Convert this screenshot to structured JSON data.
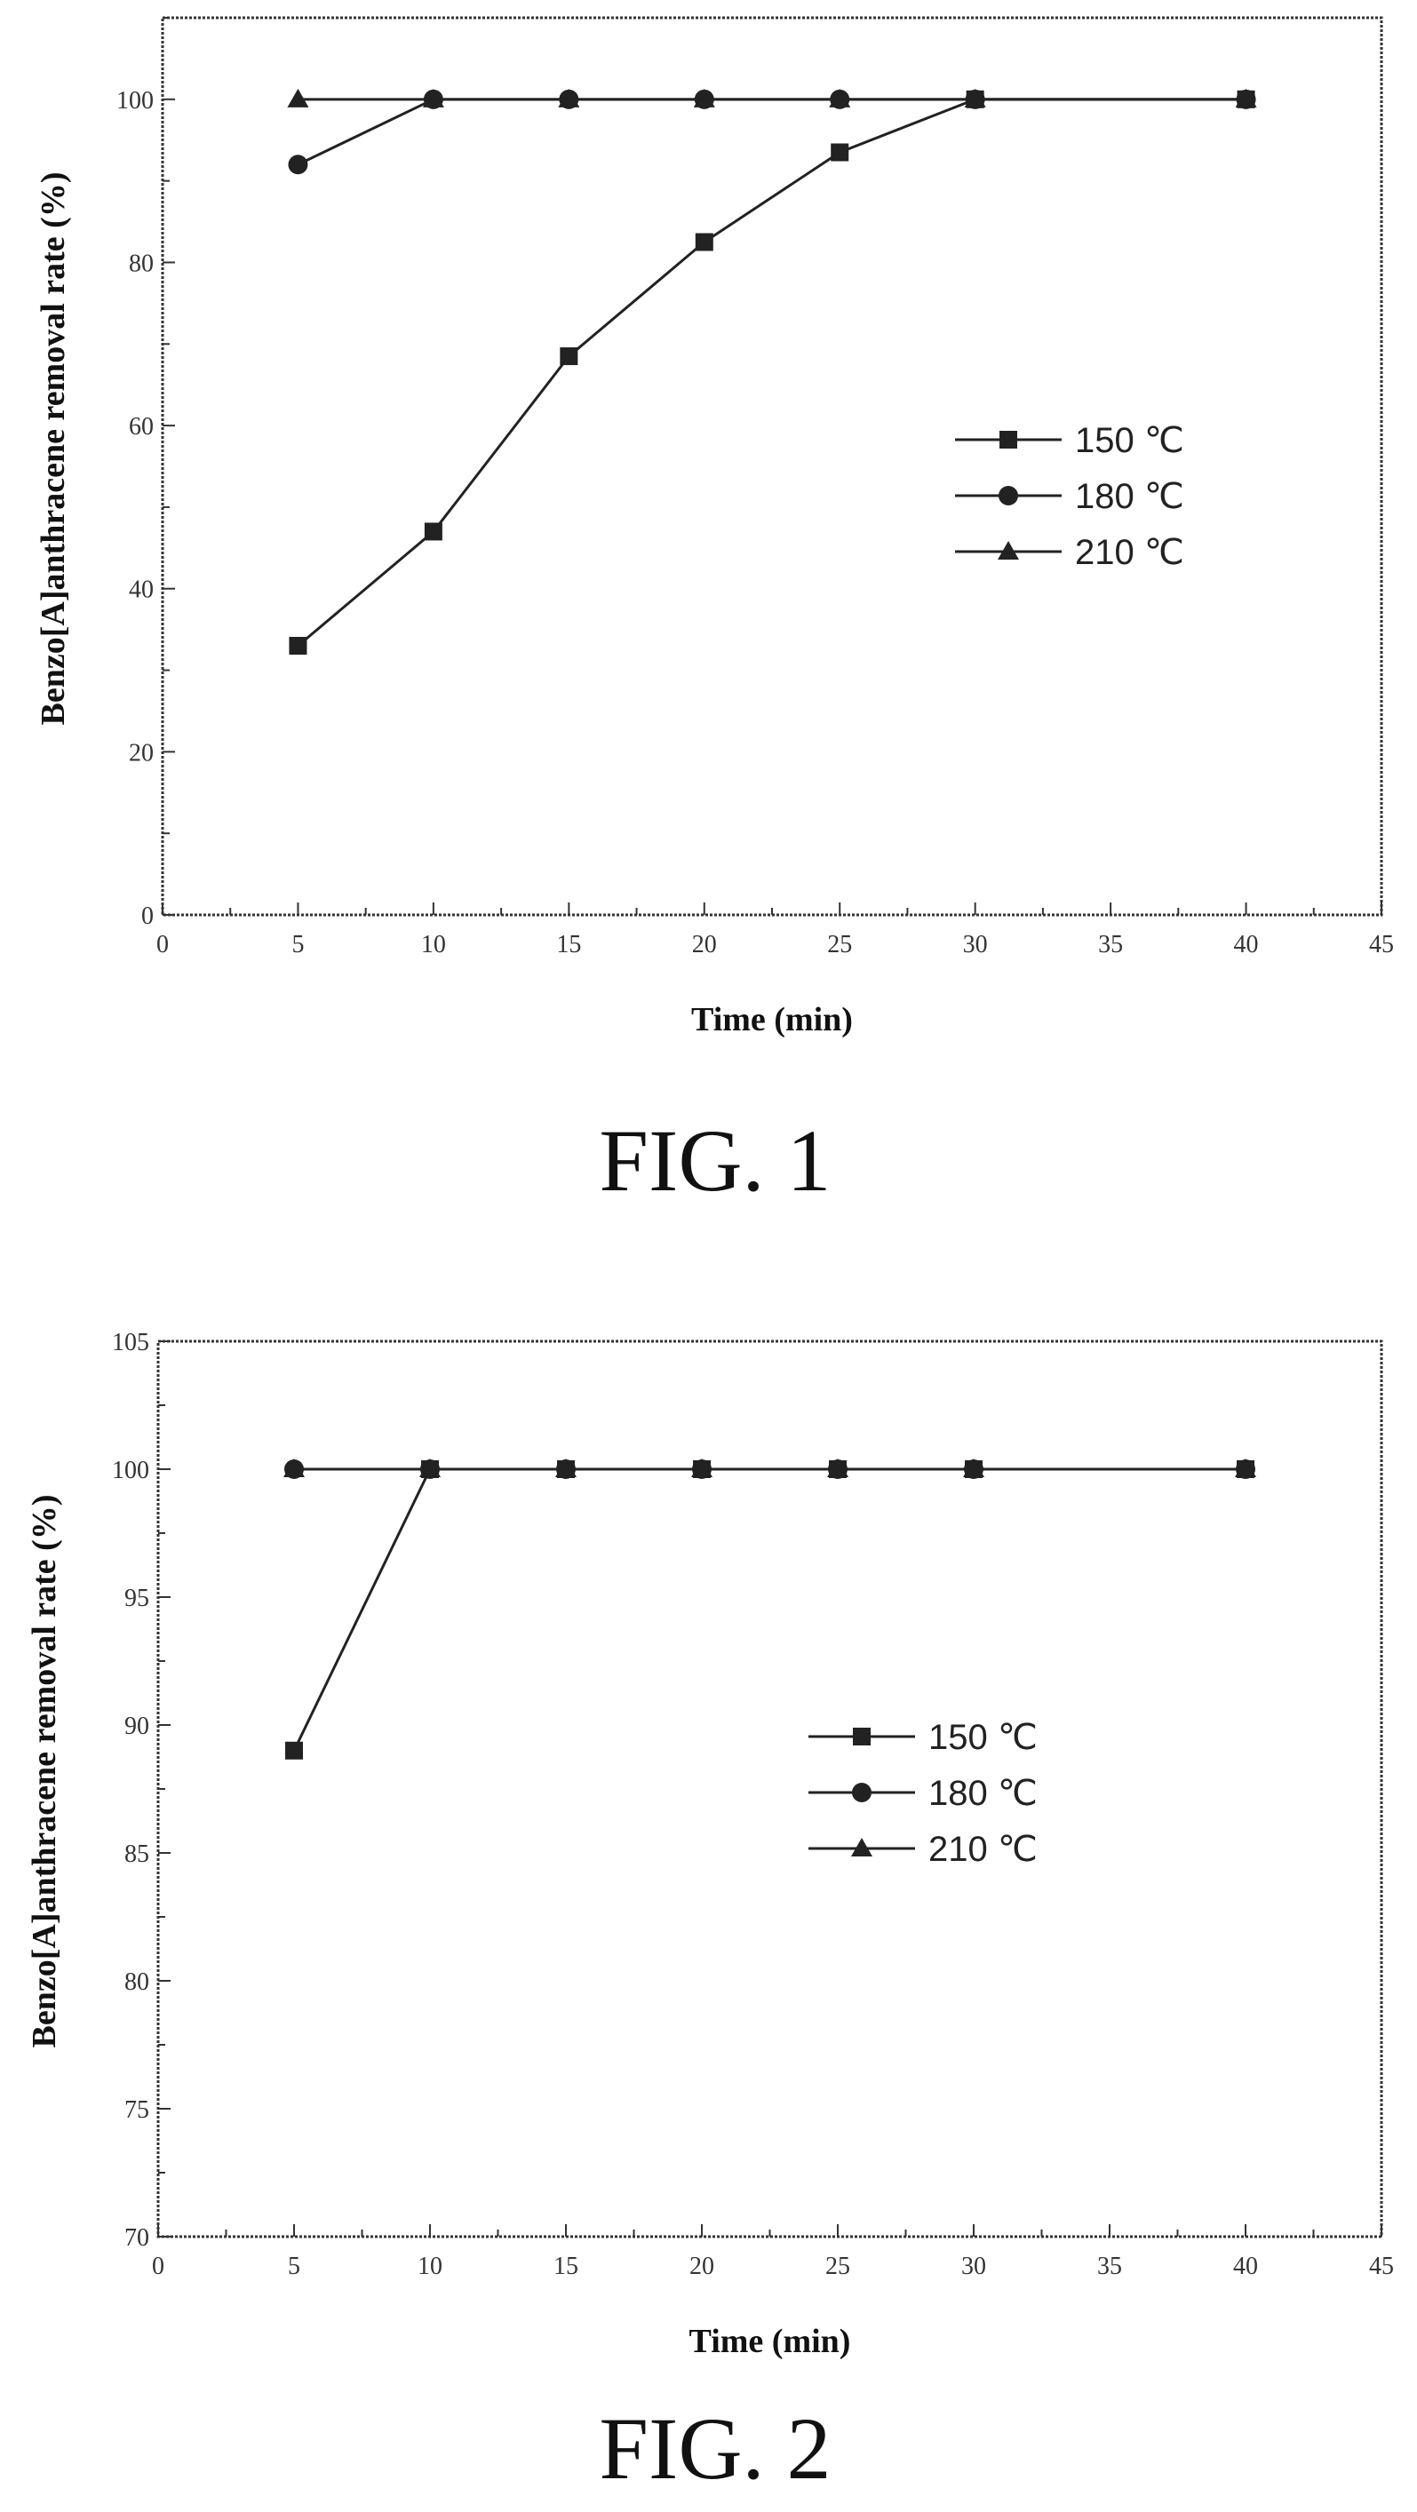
{
  "chart_data": [
    {
      "type": "line",
      "caption": "FIG. 1",
      "xlabel": "Time (min)",
      "ylabel": "Benzo[A]anthracene removal rate (%)",
      "xlim": [
        0,
        45
      ],
      "ylim": [
        0,
        110
      ],
      "xticks": [
        0,
        5,
        10,
        15,
        20,
        25,
        30,
        35,
        40,
        45
      ],
      "yticks": [
        0,
        20,
        40,
        60,
        80,
        100
      ],
      "grid": false,
      "legend_position": "right",
      "series": [
        {
          "name": "150 ℃",
          "marker": "square",
          "x": [
            5,
            10,
            15,
            20,
            25,
            30,
            40
          ],
          "y": [
            33,
            47,
            68.5,
            82.5,
            93.5,
            100,
            100
          ]
        },
        {
          "name": "180 ℃",
          "marker": "circle",
          "x": [
            5,
            10,
            15,
            20,
            25,
            30,
            40
          ],
          "y": [
            92,
            100,
            100,
            100,
            100,
            100,
            100
          ]
        },
        {
          "name": "210 ℃",
          "marker": "triangle",
          "x": [
            5,
            10,
            15,
            20,
            25,
            30,
            40
          ],
          "y": [
            100,
            100,
            100,
            100,
            100,
            100,
            100
          ]
        }
      ]
    },
    {
      "type": "line",
      "caption": "FIG. 2",
      "xlabel": "Time (min)",
      "ylabel": "Benzo[A]anthracene removal rate (%)",
      "xlim": [
        0,
        45
      ],
      "ylim": [
        70,
        105
      ],
      "xticks": [
        0,
        5,
        10,
        15,
        20,
        25,
        30,
        35,
        40,
        45
      ],
      "yticks": [
        70,
        75,
        80,
        85,
        90,
        95,
        100,
        105
      ],
      "grid": false,
      "legend_position": "center-right",
      "series": [
        {
          "name": "150 ℃",
          "marker": "square",
          "x": [
            5,
            10,
            15,
            20,
            25,
            30,
            40
          ],
          "y": [
            89,
            100,
            100,
            100,
            100,
            100,
            100
          ]
        },
        {
          "name": "180 ℃",
          "marker": "circle",
          "x": [
            5,
            10,
            15,
            20,
            25,
            30,
            40
          ],
          "y": [
            100,
            100,
            100,
            100,
            100,
            100,
            100
          ]
        },
        {
          "name": "210 ℃",
          "marker": "triangle",
          "x": [
            5,
            10,
            15,
            20,
            25,
            30,
            40
          ],
          "y": [
            100,
            100,
            100,
            100,
            100,
            100,
            100
          ]
        }
      ]
    }
  ]
}
